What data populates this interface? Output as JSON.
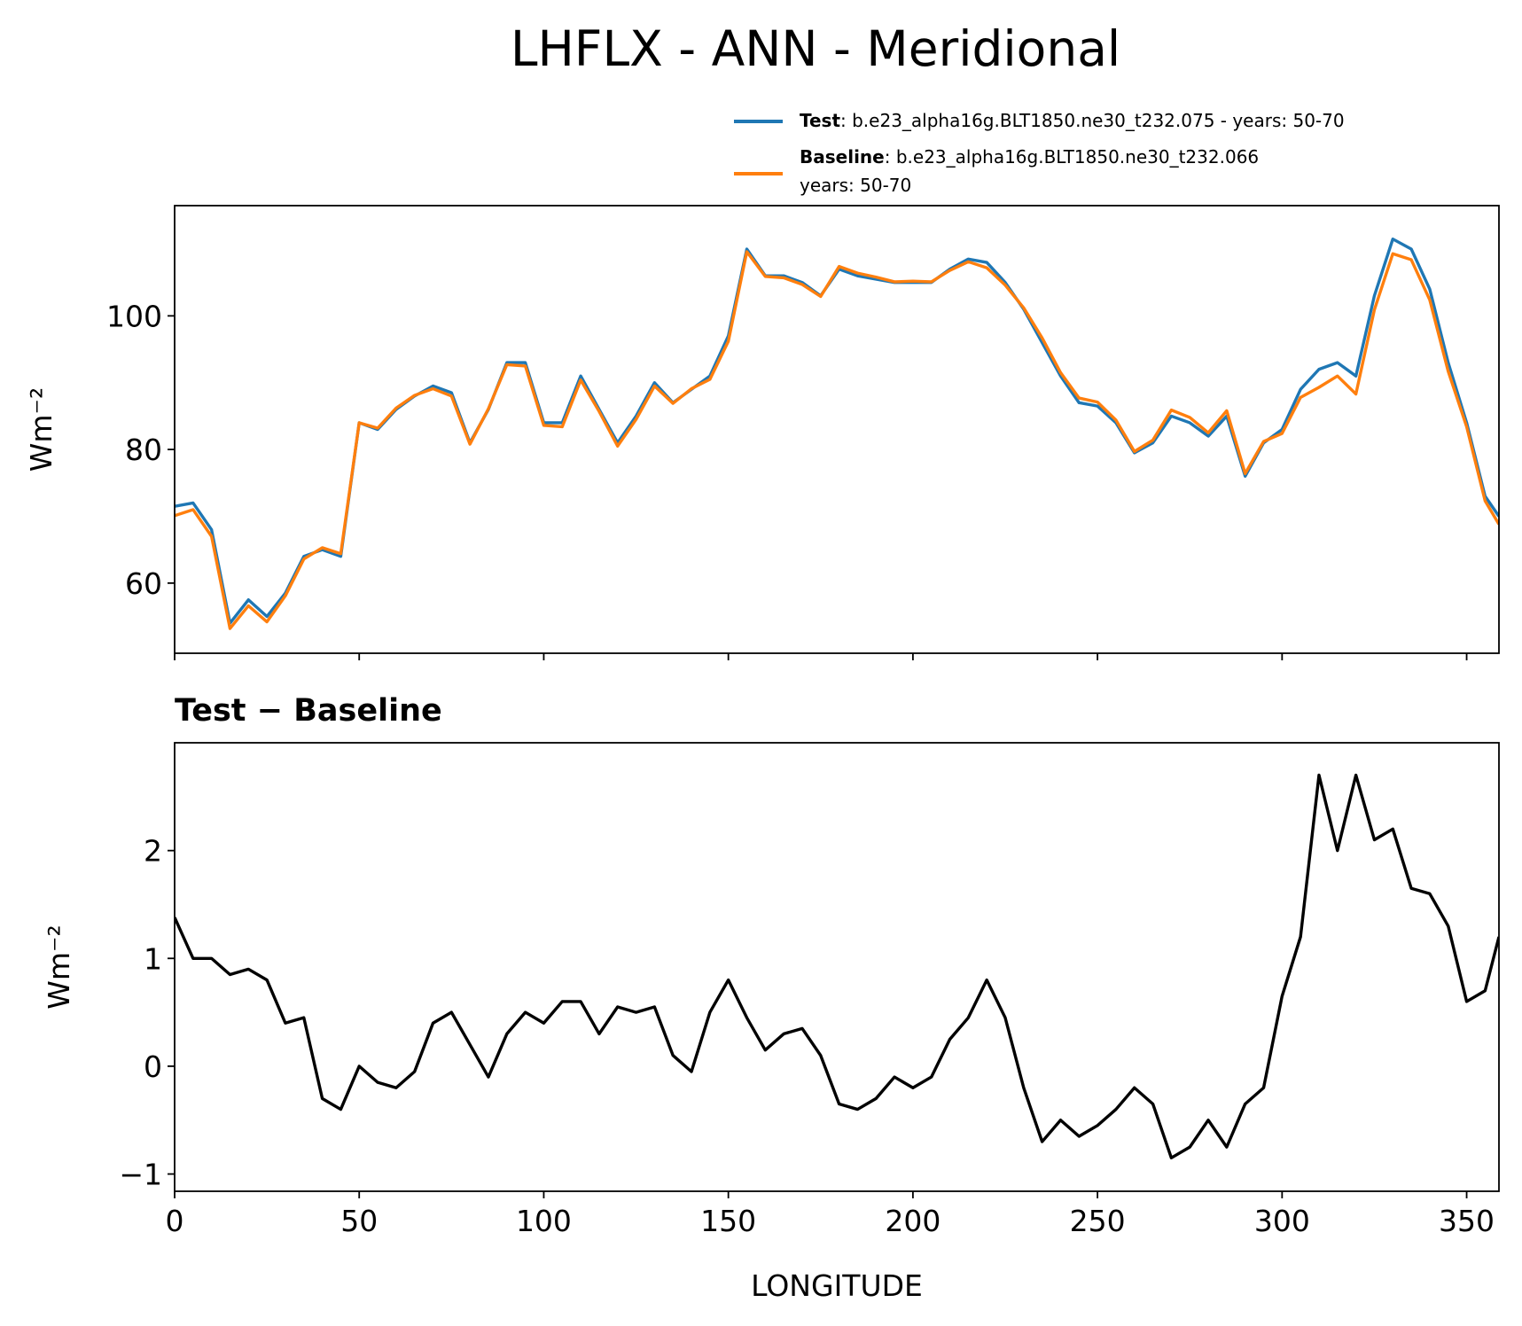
{
  "chart_data": [
    {
      "type": "line",
      "title": "LHFLX - ANN - Meridional",
      "ylabel": "Wm⁻²",
      "x": [
        0,
        5,
        10,
        15,
        20,
        25,
        30,
        35,
        40,
        45,
        50,
        55,
        60,
        65,
        70,
        75,
        80,
        85,
        90,
        95,
        100,
        105,
        110,
        115,
        120,
        125,
        130,
        135,
        140,
        145,
        150,
        155,
        160,
        165,
        170,
        175,
        180,
        185,
        190,
        195,
        200,
        205,
        210,
        215,
        220,
        225,
        230,
        235,
        240,
        245,
        250,
        255,
        260,
        265,
        270,
        275,
        280,
        285,
        290,
        295,
        300,
        305,
        310,
        315,
        320,
        325,
        330,
        335,
        340,
        345,
        350,
        355,
        358.75
      ],
      "series": [
        {
          "name": "Test",
          "description": [
            ": b.e23_alpha16g.BLT1850.ne30_t232.075 - years: 50-70"
          ],
          "color": "#1f77b4",
          "values": [
            71.5,
            72,
            68,
            54,
            57.5,
            55,
            58.5,
            64,
            65,
            64,
            84,
            83,
            86,
            88,
            89.5,
            88.5,
            81,
            86,
            93,
            93,
            84,
            84,
            91,
            86,
            81,
            85,
            90,
            87,
            89,
            91,
            97,
            110,
            106,
            106,
            105,
            103,
            107,
            106,
            105.5,
            105,
            105,
            105,
            107,
            108.5,
            108,
            105,
            101,
            96,
            91,
            87,
            86.5,
            84,
            79.5,
            81,
            85,
            84,
            82,
            85,
            76,
            81,
            83,
            89,
            92,
            93,
            91,
            103,
            111.5,
            110,
            104,
            93,
            84,
            73,
            70
          ]
        },
        {
          "name": "Baseline",
          "description": [
            ": b.e23_alpha16g.BLT1850.ne30_t232.066",
            "years: 50-70"
          ],
          "color": "#ff7f0e",
          "values": [
            70.1,
            71,
            67,
            53.2,
            56.6,
            54.2,
            58.1,
            63.6,
            65.3,
            64.4,
            84,
            83.2,
            86.2,
            88.1,
            89.1,
            88,
            80.8,
            86.1,
            92.7,
            92.5,
            83.6,
            83.4,
            90.4,
            85.7,
            80.5,
            84.5,
            89.5,
            86.9,
            89.1,
            90.5,
            96.2,
            109.6,
            105.9,
            105.7,
            104.7,
            102.9,
            107.4,
            106.4,
            105.8,
            105.1,
            105.2,
            105.1,
            106.8,
            108.1,
            107.2,
            104.6,
            101.2,
            96.7,
            91.5,
            87.7,
            87.1,
            84.4,
            79.7,
            81.4,
            85.9,
            84.8,
            82.5,
            85.8,
            76.4,
            81.2,
            82.4,
            87.8,
            89.3,
            91,
            88.3,
            100.9,
            109.3,
            108.4,
            102.4,
            91.7,
            83.4,
            72.3,
            68.8
          ]
        }
      ],
      "xlim": [
        0,
        358.75
      ],
      "xticks": [
        0,
        50,
        100,
        150,
        200,
        250,
        300,
        350
      ],
      "xticklabels": false,
      "ylim": [
        49.5,
        116.5
      ],
      "yticks": [
        60,
        80,
        100
      ]
    },
    {
      "type": "line",
      "title": "Test − Baseline",
      "ylabel": "Wm⁻²",
      "xlabel": "LONGITUDE",
      "x": [
        0,
        5,
        10,
        15,
        20,
        25,
        30,
        35,
        40,
        45,
        50,
        55,
        60,
        65,
        70,
        75,
        80,
        85,
        90,
        95,
        100,
        105,
        110,
        115,
        120,
        125,
        130,
        135,
        140,
        145,
        150,
        155,
        160,
        165,
        170,
        175,
        180,
        185,
        190,
        195,
        200,
        205,
        210,
        215,
        220,
        225,
        230,
        235,
        240,
        245,
        250,
        255,
        260,
        265,
        270,
        275,
        280,
        285,
        290,
        295,
        300,
        305,
        310,
        315,
        320,
        325,
        330,
        335,
        340,
        345,
        350,
        355,
        358.75
      ],
      "series": [
        {
          "color": "#000000",
          "values": [
            1.38,
            1.0,
            1.0,
            0.85,
            0.9,
            0.8,
            0.4,
            0.45,
            -0.3,
            -0.4,
            0.0,
            -0.15,
            -0.2,
            -0.05,
            0.4,
            0.5,
            0.2,
            -0.1,
            0.3,
            0.5,
            0.4,
            0.6,
            0.6,
            0.3,
            0.55,
            0.5,
            0.55,
            0.1,
            -0.05,
            0.5,
            0.8,
            0.45,
            0.15,
            0.3,
            0.35,
            0.1,
            -0.35,
            -0.4,
            -0.3,
            -0.1,
            -0.2,
            -0.1,
            0.25,
            0.45,
            0.8,
            0.45,
            -0.2,
            -0.7,
            -0.5,
            -0.65,
            -0.55,
            -0.4,
            -0.2,
            -0.35,
            -0.85,
            -0.75,
            -0.5,
            -0.75,
            -0.35,
            -0.2,
            0.65,
            1.2,
            2.7,
            2.0,
            2.7,
            2.1,
            2.2,
            1.65,
            1.6,
            1.3,
            0.6,
            0.7,
            1.2
          ]
        }
      ],
      "xlim": [
        0,
        358.75
      ],
      "xticks": [
        0,
        50,
        100,
        150,
        200,
        250,
        300,
        350
      ],
      "xticklabels": true,
      "ylim": [
        -1.16,
        3.0
      ],
      "yticks": [
        {
          "value": -1,
          "label": "−1"
        },
        0,
        1,
        2
      ]
    }
  ]
}
